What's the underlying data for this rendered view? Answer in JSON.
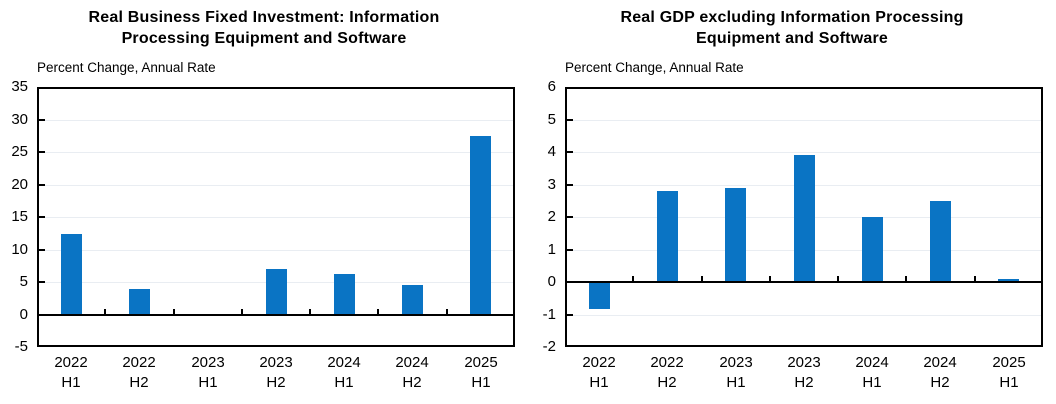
{
  "figure": {
    "background": "#ffffff",
    "bar_color": "#0a74c4",
    "axis_color": "#000000",
    "grid_color": "#e9edf2"
  },
  "chart_data": [
    {
      "type": "bar",
      "title": "Real Business Fixed Investment: Information Processing Equipment and Software",
      "title_lines": [
        "Real Business Fixed Investment: Information",
        "Processing Equipment and Software"
      ],
      "ylabel": "Percent Change, Annual Rate",
      "xlabel": "",
      "categories": [
        "2022 H1",
        "2022 H2",
        "2023 H1",
        "2023 H2",
        "2024 H1",
        "2024 H2",
        "2025 H1"
      ],
      "values": [
        12.4,
        3.9,
        0.1,
        7.0,
        6.3,
        4.5,
        27.5
      ],
      "ylim": [
        -5,
        35
      ],
      "yticks": [
        35,
        30,
        25,
        20,
        15,
        10,
        5,
        0,
        -5
      ],
      "grid": true,
      "legend": "none",
      "bar_color": "#0a74c4"
    },
    {
      "type": "bar",
      "title": "Real GDP excluding Information Processing Equipment and Software",
      "title_lines": [
        "Real GDP excluding Information Processing",
        "Equipment and Software"
      ],
      "ylabel": "Percent Change, Annual Rate",
      "xlabel": "",
      "categories": [
        "2022 H1",
        "2022 H2",
        "2023 H1",
        "2023 H2",
        "2024 H1",
        "2024 H2",
        "2025 H1"
      ],
      "values": [
        -0.8,
        2.8,
        2.9,
        3.9,
        2.0,
        2.5,
        0.1
      ],
      "ylim": [
        -2,
        6
      ],
      "yticks": [
        6,
        5,
        4,
        3,
        2,
        1,
        0,
        -1,
        -2
      ],
      "grid": true,
      "legend": "none",
      "bar_color": "#0a74c4"
    }
  ]
}
